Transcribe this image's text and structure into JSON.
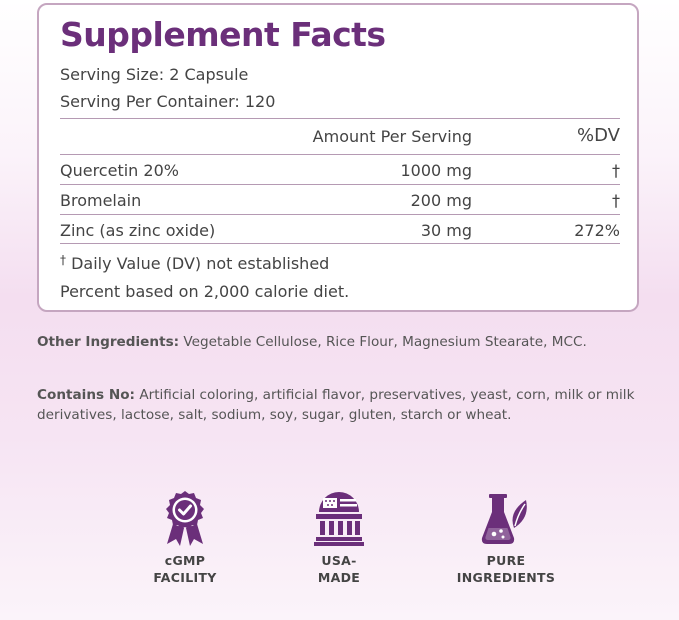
{
  "facts": {
    "title": "Supplement Facts",
    "serving_size": "Serving Size: 2 Capsule",
    "servings_per_container": "Serving Per Container: 120",
    "columns": {
      "amount": "Amount Per Serving",
      "dv": "%DV"
    },
    "rows": [
      {
        "name": "Quercetin 20%",
        "amount": "1000 mg",
        "dv": "†"
      },
      {
        "name": "Bromelain",
        "amount": "200 mg",
        "dv": "†"
      },
      {
        "name": "Zinc (as zinc oxide)",
        "amount": "30 mg",
        "dv": "272%"
      }
    ],
    "footnote_dagger": "†",
    "footnote_text": "Daily Value (DV) not established",
    "footnote_percent": "Percent based on 2,000 calorie diet."
  },
  "other_ingredients": {
    "label": "Other Ingredients:",
    "text": "Vegetable Cellulose, Rice Flour, Magnesium Stearate, MCC."
  },
  "contains_no": {
    "label": "Contains No:",
    "text": "Artificial coloring, artificial flavor, preservatives, yeast, corn, milk or milk derivatives, lactose, salt, sodium, soy, sugar, gluten, starch or wheat."
  },
  "badges": [
    {
      "icon": "award-ribbon-icon",
      "line1": "cGMP",
      "line2": "FACILITY"
    },
    {
      "icon": "usa-flag-building-icon",
      "line1": "USA-",
      "line2": "MADE"
    },
    {
      "icon": "flask-leaf-icon",
      "line1": "PURE",
      "line2": "INGREDIENTS"
    }
  ],
  "colors": {
    "accent": "#6b2f7a",
    "border": "#c5a6c0",
    "text": "#444444"
  }
}
